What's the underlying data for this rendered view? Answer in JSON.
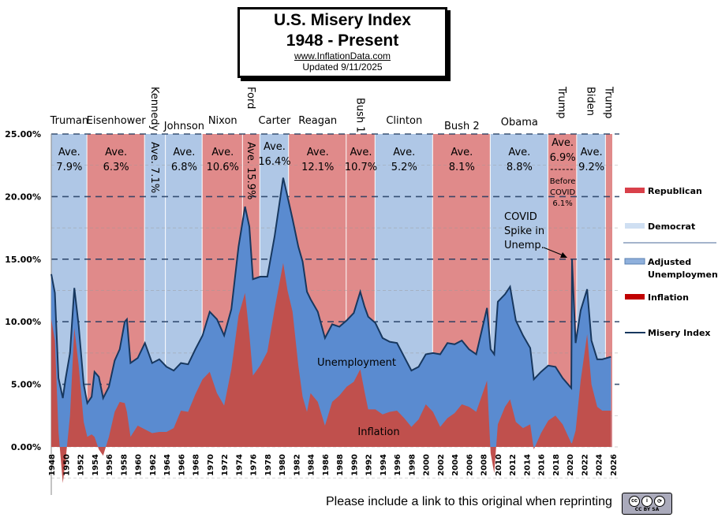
{
  "title": {
    "line1": "U.S. Misery Index",
    "line2": "1948 - Present",
    "url": "www.InflationData.com",
    "updated": "Updated  9/11/2025"
  },
  "footer": {
    "note": "Please include a link to this original when reprinting",
    "license_badge": "cc by sa"
  },
  "chart_data": {
    "type": "area",
    "ylim": [
      -3.5,
      25
    ],
    "xlim": [
      1948,
      2026
    ],
    "y_ticks": [
      "0.00%",
      "5.00%",
      "10.00%",
      "15.00%",
      "20.00%",
      "25.00%"
    ],
    "y_tick_values": [
      0,
      5,
      10,
      15,
      20,
      25
    ],
    "x_ticks": [
      "1948",
      "1950",
      "1952",
      "1954",
      "1956",
      "1958",
      "1960",
      "1962",
      "1964",
      "1966",
      "1968",
      "1970",
      "1972",
      "1974",
      "1976",
      "1978",
      "1980",
      "1982",
      "1984",
      "1986",
      "1988",
      "1990",
      "1992",
      "1994",
      "1996",
      "1998",
      "2000",
      "2002",
      "2004",
      "2006",
      "2008",
      "2010",
      "2012",
      "2014",
      "2016",
      "2018",
      "2020",
      "2022",
      "2024",
      "2026"
    ],
    "grid": true,
    "legend_placement": "right",
    "colors": {
      "republican": "#e08a8a",
      "democrat": "#afc7e6",
      "unemployment": "#5a8bd0",
      "inflation": "#c0504d",
      "misery": "#17375e"
    },
    "legend": [
      {
        "label": "Republican",
        "swatch": "#d9404a"
      },
      {
        "label": "Democrat",
        "swatch": "#cfdff2"
      },
      {
        "label": "Adjusted Unemployment",
        "swatch": "#8fb0dc"
      },
      {
        "label": "Inflation",
        "swatch": "#c00000"
      },
      {
        "label": "Misery Index",
        "swatch": "#17375e"
      }
    ],
    "presidents": [
      {
        "name": "Truman",
        "start": 1948,
        "end": 1953,
        "party": "D",
        "ave": "Ave. 7.9%"
      },
      {
        "name": "Eisenhower",
        "start": 1953,
        "end": 1961,
        "party": "R",
        "ave": "Ave. 6.3%"
      },
      {
        "name": "Kennedy",
        "start": 1961,
        "end": 1963.9,
        "party": "D",
        "ave": "Ave. 7.1%"
      },
      {
        "name": "Johnson",
        "start": 1963.9,
        "end": 1969,
        "party": "D",
        "ave": "Ave. 6.8%"
      },
      {
        "name": "Nixon",
        "start": 1969,
        "end": 1974.6,
        "party": "R",
        "ave": "Ave. 10.6%"
      },
      {
        "name": "Ford",
        "start": 1974.6,
        "end": 1977,
        "party": "R",
        "ave": "Ave. 15.9%"
      },
      {
        "name": "Carter",
        "start": 1977,
        "end": 1981,
        "party": "D",
        "ave": "Ave. 16.4%"
      },
      {
        "name": "Reagan",
        "start": 1981,
        "end": 1989,
        "party": "R",
        "ave": "Ave. 12.1%"
      },
      {
        "name": "Bush 1",
        "start": 1989,
        "end": 1993,
        "party": "R",
        "ave": "Ave. 10.7%"
      },
      {
        "name": "Clinton",
        "start": 1993,
        "end": 2001,
        "party": "D",
        "ave": "Ave. 5.2%"
      },
      {
        "name": "Bush 2",
        "start": 2001,
        "end": 2009,
        "party": "R",
        "ave": "Ave. 8.1%"
      },
      {
        "name": "Obama",
        "start": 2009,
        "end": 2017,
        "party": "D",
        "ave": "Ave. 8.8%"
      },
      {
        "name": "Trump",
        "start": 2017,
        "end": 2021,
        "party": "R",
        "ave": "Ave. 6.9%",
        "note": "Before COVID 6.1%"
      },
      {
        "name": "Biden",
        "start": 2021,
        "end": 2025,
        "party": "D",
        "ave": "Ave. 9.2%"
      },
      {
        "name": "Trump",
        "start": 2025,
        "end": 2026,
        "party": "R",
        "ave": ""
      }
    ],
    "annotations": {
      "unemployment": "Unemployment",
      "inflation": "Inflation",
      "covid": "COVID Spike in Unemp."
    },
    "series_columns": [
      "year",
      "unemployment",
      "inflation"
    ],
    "series": [
      [
        1948,
        3.6,
        10.2
      ],
      [
        1948.5,
        3.8,
        8.5
      ],
      [
        1949,
        4.3,
        1.2
      ],
      [
        1949.6,
        6.8,
        -2.9
      ],
      [
        1950,
        6.5,
        -1.0
      ],
      [
        1950.6,
        5.0,
        2.5
      ],
      [
        1951.2,
        3.2,
        9.5
      ],
      [
        1951.8,
        3.2,
        6.5
      ],
      [
        1952.5,
        3.0,
        2.0
      ],
      [
        1953,
        2.7,
        0.8
      ],
      [
        1953.6,
        3.0,
        1.0
      ],
      [
        1954,
        5.2,
        0.8
      ],
      [
        1954.6,
        5.8,
        -0.2
      ],
      [
        1955.2,
        4.6,
        -0.7
      ],
      [
        1956,
        4.0,
        0.8
      ],
      [
        1956.8,
        4.1,
        2.8
      ],
      [
        1957.5,
        4.2,
        3.6
      ],
      [
        1958.2,
        6.5,
        3.5
      ],
      [
        1958.5,
        7.4,
        2.8
      ],
      [
        1959,
        5.9,
        0.8
      ],
      [
        1960,
        5.4,
        1.7
      ],
      [
        1961,
        6.9,
        1.4
      ],
      [
        1962,
        5.6,
        1.1
      ],
      [
        1963,
        5.8,
        1.2
      ],
      [
        1964,
        5.2,
        1.2
      ],
      [
        1965,
        4.6,
        1.5
      ],
      [
        1966,
        3.8,
        2.9
      ],
      [
        1967,
        3.8,
        2.8
      ],
      [
        1968,
        3.6,
        4.2
      ],
      [
        1969,
        3.5,
        5.4
      ],
      [
        1970,
        4.8,
        6.0
      ],
      [
        1971,
        5.9,
        4.3
      ],
      [
        1972,
        5.6,
        3.3
      ],
      [
        1973,
        4.8,
        6.2
      ],
      [
        1974,
        5.5,
        10.5
      ],
      [
        1974.9,
        6.9,
        12.3
      ],
      [
        1975.5,
        8.6,
        9.0
      ],
      [
        1976,
        7.7,
        5.7
      ],
      [
        1977,
        7.1,
        6.5
      ],
      [
        1978,
        6.0,
        7.6
      ],
      [
        1979,
        5.8,
        11.0
      ],
      [
        1980.2,
        6.8,
        14.7
      ],
      [
        1980.8,
        7.5,
        12.5
      ],
      [
        1981.5,
        7.4,
        10.8
      ],
      [
        1982.3,
        9.5,
        6.5
      ],
      [
        1982.9,
        10.8,
        4.0
      ],
      [
        1983.5,
        9.6,
        2.8
      ],
      [
        1984,
        7.5,
        4.3
      ],
      [
        1985,
        7.2,
        3.6
      ],
      [
        1986,
        7.0,
        1.7
      ],
      [
        1987,
        6.2,
        3.6
      ],
      [
        1988,
        5.5,
        4.1
      ],
      [
        1989,
        5.3,
        4.8
      ],
      [
        1990,
        5.5,
        5.2
      ],
      [
        1990.9,
        6.2,
        6.2
      ],
      [
        1991.5,
        6.8,
        4.4
      ],
      [
        1992,
        7.4,
        3.0
      ],
      [
        1993,
        6.9,
        3.0
      ],
      [
        1994,
        6.1,
        2.6
      ],
      [
        1995,
        5.6,
        2.8
      ],
      [
        1996,
        5.4,
        2.9
      ],
      [
        1997,
        4.9,
        2.3
      ],
      [
        1998,
        4.5,
        1.6
      ],
      [
        1999,
        4.2,
        2.2
      ],
      [
        2000,
        4.0,
        3.4
      ],
      [
        2001,
        4.7,
        2.8
      ],
      [
        2002,
        5.8,
        1.6
      ],
      [
        2003,
        6.0,
        2.3
      ],
      [
        2004,
        5.5,
        2.7
      ],
      [
        2005,
        5.1,
        3.4
      ],
      [
        2006,
        4.6,
        3.2
      ],
      [
        2007,
        4.6,
        2.8
      ],
      [
        2008.5,
        5.8,
        5.3
      ],
      [
        2009,
        8.3,
        -0.5
      ],
      [
        2009.5,
        9.5,
        -2.1
      ],
      [
        2010,
        9.8,
        1.8
      ],
      [
        2011,
        9.0,
        3.2
      ],
      [
        2011.7,
        9.0,
        3.8
      ],
      [
        2012.5,
        8.1,
        2.0
      ],
      [
        2013.5,
        7.4,
        1.5
      ],
      [
        2014.5,
        6.1,
        1.8
      ],
      [
        2015,
        5.6,
        -0.2
      ],
      [
        2016,
        4.9,
        1.1
      ],
      [
        2017,
        4.4,
        2.1
      ],
      [
        2018,
        3.9,
        2.5
      ],
      [
        2019,
        3.7,
        1.8
      ],
      [
        2020.2,
        4.4,
        0.3
      ],
      [
        2020.3,
        14.7,
        0.3
      ],
      [
        2020.8,
        7.0,
        1.3
      ],
      [
        2021.5,
        5.6,
        5.3
      ],
      [
        2022.4,
        3.6,
        9.0
      ],
      [
        2023,
        3.5,
        5.0
      ],
      [
        2023.8,
        3.8,
        3.2
      ],
      [
        2024.5,
        4.1,
        2.9
      ],
      [
        2025.7,
        4.3,
        2.9
      ]
    ]
  }
}
